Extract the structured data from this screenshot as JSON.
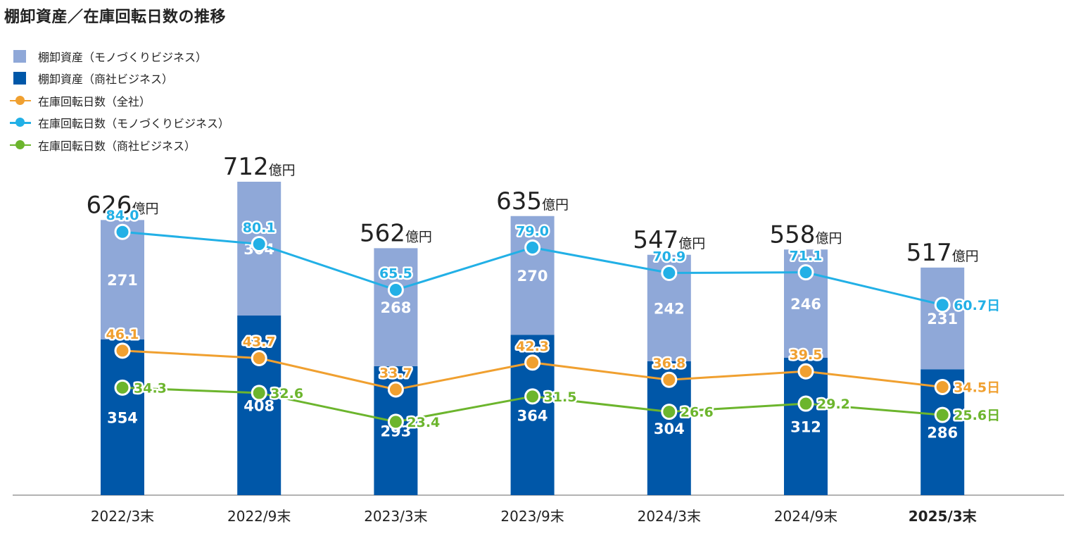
{
  "title": "棚卸資産／在庫回転日数の推移",
  "legend": [
    {
      "label": "棚卸資産（モノづくりビジネス）",
      "kind": "square",
      "color": "#8fa8d8"
    },
    {
      "label": "棚卸資産（商社ビジネス）",
      "kind": "square",
      "color": "#0057a8"
    },
    {
      "label": "在庫回転日数（全社）",
      "kind": "line",
      "color": "#f0a030"
    },
    {
      "label": "在庫回転日数（モノづくりビジネス）",
      "kind": "line",
      "color": "#22b0e6"
    },
    {
      "label": "在庫回転日数（商社ビジネス）",
      "kind": "line",
      "color": "#6cb52d"
    }
  ],
  "chart_data": {
    "type": "bar",
    "title": "棚卸資産／在庫回転日数の推移",
    "categories": [
      "2022/3末",
      "2022/9末",
      "2023/3末",
      "2023/9末",
      "2024/3末",
      "2024/9末",
      "2025/3末"
    ],
    "bold_category_index": 6,
    "total_unit": "億円",
    "day_unit": "日",
    "series": [
      {
        "name": "棚卸資産（商社ビジネス）",
        "type": "bar",
        "stack": "inventory",
        "color": "#0057a8",
        "values": [
          354,
          408,
          293,
          364,
          304,
          312,
          286
        ]
      },
      {
        "name": "棚卸資産（モノづくりビジネス）",
        "type": "bar",
        "stack": "inventory",
        "color": "#8fa8d8",
        "values": [
          271,
          304,
          268,
          270,
          242,
          246,
          231
        ]
      },
      {
        "name": "在庫回転日数（全社）",
        "type": "line",
        "color": "#f0a030",
        "values": [
          46.1,
          43.7,
          33.7,
          42.3,
          36.8,
          39.5,
          34.5
        ]
      },
      {
        "name": "在庫回転日数（モノづくりビジネス）",
        "type": "line",
        "color": "#22b0e6",
        "values": [
          84.0,
          80.1,
          65.5,
          79.0,
          70.9,
          71.1,
          60.7
        ]
      },
      {
        "name": "在庫回転日数（商社ビジネス）",
        "type": "line",
        "color": "#6cb52d",
        "values": [
          34.3,
          32.6,
          23.4,
          31.5,
          26.6,
          29.2,
          25.6
        ]
      }
    ],
    "totals": [
      626,
      712,
      562,
      635,
      547,
      558,
      517
    ],
    "ylim_inventory": [
      0,
      712
    ],
    "ylim_days": [
      0,
      100
    ]
  }
}
